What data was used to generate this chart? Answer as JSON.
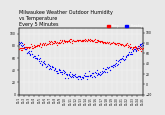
{
  "title": "Milwaukee Weather Outdoor Humidity\nvs Temperature\nEvery 5 Minutes",
  "title_fontsize": 3.5,
  "background_color": "#e8e8e8",
  "plot_bg_color": "#e8e8e8",
  "humidity_color": "#0000ff",
  "temp_color": "#ff0000",
  "legend_humidity_color": "#0000cc",
  "legend_temp_color": "#cc0000",
  "legend_bg_color": "#4444ff",
  "ylim_left": [
    0,
    110
  ],
  "ylim_right": [
    -20,
    110
  ],
  "xlabel": "",
  "ylabel_left": "",
  "ylabel_right": "",
  "marker_size": 0.8,
  "xtick_fontsize": 2.0,
  "ytick_fontsize": 2.2
}
